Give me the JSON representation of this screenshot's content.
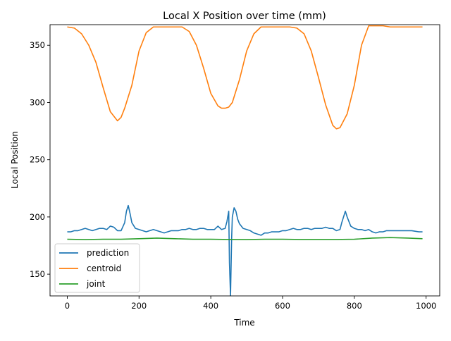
{
  "chart_data": {
    "type": "line",
    "title": "Local X Position over time (mm)",
    "xlabel": "Time",
    "ylabel": "Local Position",
    "xlim": [
      -48,
      1038
    ],
    "ylim": [
      131,
      368
    ],
    "xticks": [
      0,
      200,
      400,
      600,
      800,
      1000
    ],
    "yticks": [
      150,
      200,
      250,
      300,
      350
    ],
    "grid": false,
    "legend_position": "lower-left",
    "series": [
      {
        "name": "prediction",
        "color": "#1f77b4",
        "x": [
          0,
          10,
          20,
          30,
          40,
          50,
          60,
          70,
          80,
          90,
          100,
          110,
          120,
          130,
          140,
          150,
          160,
          165,
          170,
          175,
          180,
          190,
          200,
          210,
          220,
          230,
          240,
          250,
          260,
          270,
          280,
          290,
          300,
          310,
          320,
          330,
          340,
          350,
          360,
          370,
          380,
          390,
          400,
          410,
          420,
          430,
          440,
          445,
          450,
          452,
          455,
          458,
          460,
          465,
          470,
          475,
          480,
          490,
          500,
          510,
          520,
          530,
          540,
          550,
          560,
          570,
          580,
          590,
          600,
          610,
          620,
          630,
          640,
          650,
          660,
          670,
          680,
          690,
          700,
          710,
          720,
          730,
          740,
          750,
          760,
          765,
          770,
          775,
          780,
          790,
          800,
          810,
          820,
          830,
          840,
          850,
          860,
          870,
          880,
          890,
          900,
          920,
          940,
          960,
          980,
          990
        ],
        "y": [
          187,
          187,
          188,
          188,
          189,
          190,
          189,
          188,
          189,
          190,
          190,
          189,
          192,
          191,
          188,
          188,
          195,
          205,
          210,
          203,
          195,
          190,
          189,
          188,
          187,
          188,
          189,
          188,
          187,
          186,
          187,
          188,
          188,
          188,
          189,
          189,
          190,
          189,
          189,
          190,
          190,
          189,
          189,
          189,
          192,
          189,
          190,
          196,
          205,
          160,
          131,
          180,
          200,
          208,
          205,
          198,
          194,
          190,
          189,
          188,
          186,
          185,
          184,
          186,
          186,
          187,
          187,
          187,
          188,
          188,
          189,
          190,
          189,
          189,
          190,
          190,
          189,
          190,
          190,
          190,
          191,
          190,
          190,
          188,
          189,
          195,
          200,
          205,
          200,
          192,
          190,
          189,
          189,
          188,
          189,
          187,
          186,
          187,
          187,
          188,
          188,
          188,
          188,
          188,
          187,
          187
        ]
      },
      {
        "name": "centroid",
        "color": "#ff7f0e",
        "x": [
          0,
          20,
          40,
          60,
          80,
          100,
          120,
          140,
          150,
          160,
          180,
          200,
          220,
          240,
          260,
          280,
          300,
          320,
          340,
          360,
          380,
          400,
          420,
          430,
          440,
          450,
          460,
          480,
          500,
          520,
          540,
          560,
          580,
          600,
          620,
          640,
          660,
          680,
          700,
          720,
          740,
          750,
          760,
          780,
          800,
          820,
          840,
          860,
          880,
          900,
          920,
          940,
          960,
          980,
          990
        ],
        "y": [
          366,
          365,
          360,
          350,
          335,
          313,
          292,
          284,
          287,
          295,
          315,
          345,
          361,
          366,
          366,
          366,
          366,
          366,
          362,
          350,
          330,
          308,
          297,
          295,
          295,
          296,
          300,
          320,
          345,
          360,
          366,
          366,
          366,
          366,
          366,
          365,
          360,
          345,
          322,
          298,
          280,
          277,
          278,
          290,
          315,
          350,
          367,
          367,
          367,
          366,
          366,
          366,
          366,
          366,
          366
        ]
      },
      {
        "name": "joint",
        "color": "#2ca02c",
        "x": [
          0,
          50,
          100,
          150,
          200,
          250,
          300,
          350,
          400,
          450,
          500,
          550,
          600,
          650,
          700,
          750,
          800,
          850,
          900,
          950,
          990
        ],
        "y": [
          180.5,
          180.2,
          180.5,
          180.5,
          181,
          181.5,
          181,
          180.5,
          180.5,
          180.3,
          180.2,
          180.5,
          180.5,
          180.3,
          180.3,
          180.3,
          180.5,
          181.5,
          182,
          181.5,
          181
        ]
      }
    ]
  }
}
